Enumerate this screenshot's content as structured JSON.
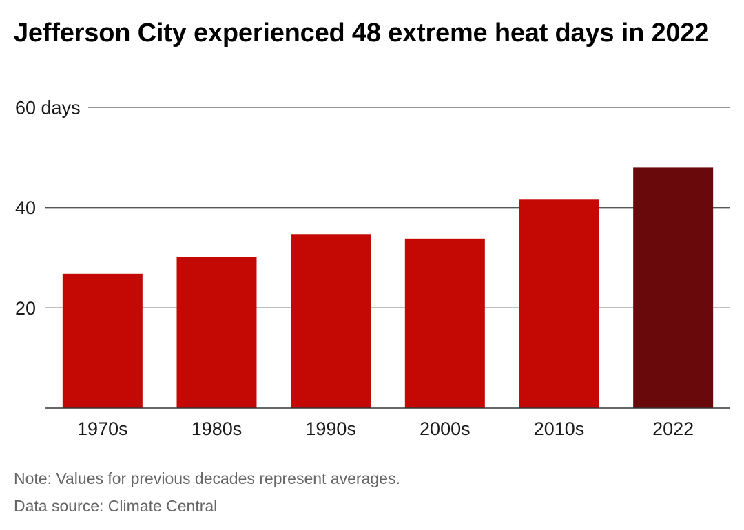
{
  "chart_data": {
    "type": "bar",
    "title": "Jefferson City experienced 48 extreme heat days in 2022",
    "categories": [
      "1970s",
      "1980s",
      "1990s",
      "2000s",
      "2010s",
      "2022"
    ],
    "values": [
      26.8,
      30.2,
      34.7,
      33.8,
      41.7,
      48
    ],
    "ylim": [
      0,
      60
    ],
    "yticks": [
      {
        "value": 20,
        "label": "20"
      },
      {
        "value": 40,
        "label": "40"
      },
      {
        "value": 60,
        "label": "60 days"
      }
    ],
    "grid": true,
    "colors": {
      "default": "#c40804",
      "highlight": "#6a090c"
    },
    "highlight_category": "2022",
    "note": "Note: Values for previous decades represent averages.",
    "source": "Data source: Climate Central"
  }
}
